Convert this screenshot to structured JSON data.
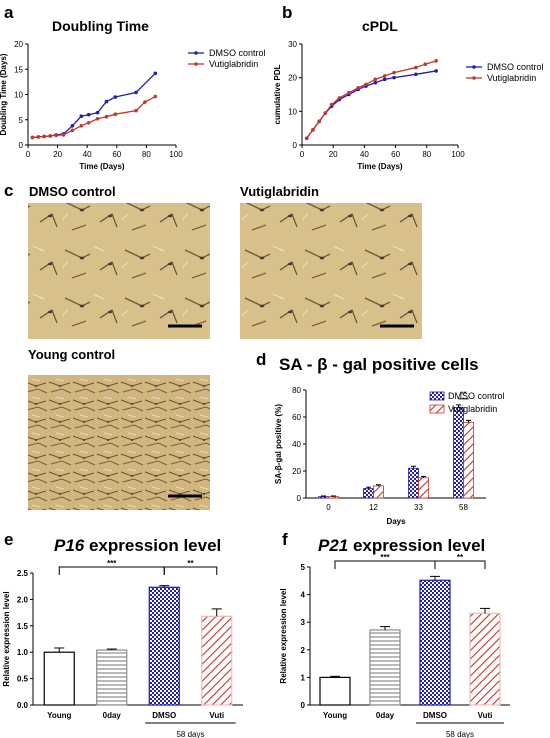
{
  "panels": {
    "a": "a",
    "b": "b",
    "c": "c",
    "d": "d",
    "e": "e",
    "f": "f"
  },
  "photos": {
    "dmso_label": "DMSO control",
    "vuti_label": "Vutiglabridin",
    "young_label": "Young control"
  },
  "e_title": {
    "gene": "P16",
    "rest": " expression level"
  },
  "f_title": {
    "gene": "P21",
    "rest": " expression level"
  },
  "colors": {
    "dmso": "#1f1fb4",
    "vuti": "#c0392b",
    "vuti_light": "#f2b8b8"
  },
  "chart_data": [
    {
      "id": "a",
      "type": "line",
      "title": "Doubling Time",
      "xlabel": "Time (Days)",
      "ylabel": "Doubling Time  (Days)",
      "xlim": [
        0,
        100
      ],
      "ylim": [
        0,
        20
      ],
      "xticks": [
        "0",
        "20",
        "40",
        "60",
        "80",
        "100"
      ],
      "yticks": [
        "0",
        "5",
        "10",
        "15",
        "20"
      ],
      "legend_position": "right",
      "series": [
        {
          "name": "DMSO control",
          "x": [
            3,
            7,
            11,
            15,
            19,
            24,
            30,
            36,
            41,
            47,
            53,
            59,
            73,
            86
          ],
          "y": [
            1.5,
            1.6,
            1.7,
            1.8,
            2.0,
            2.2,
            3.8,
            5.7,
            6.0,
            6.4,
            8.6,
            9.5,
            10.4,
            14.2
          ]
        },
        {
          "name": "Vutiglabridin",
          "x": [
            3,
            7,
            11,
            15,
            19,
            24,
            30,
            36,
            41,
            47,
            53,
            59,
            73,
            79,
            86
          ],
          "y": [
            1.5,
            1.6,
            1.7,
            1.8,
            1.9,
            2.0,
            2.9,
            3.8,
            4.4,
            5.2,
            5.6,
            6.1,
            6.8,
            8.5,
            9.6
          ]
        }
      ]
    },
    {
      "id": "b",
      "type": "line",
      "title": "cPDL",
      "xlabel": "Time (Days)",
      "ylabel": "cumulative PDL",
      "xlim": [
        0,
        100
      ],
      "ylim": [
        0,
        30
      ],
      "xticks": [
        "0",
        "20",
        "40",
        "60",
        "80",
        "100"
      ],
      "yticks": [
        "0",
        "10",
        "20",
        "30"
      ],
      "legend_position": "right",
      "series": [
        {
          "name": "DMSO control",
          "x": [
            3,
            7,
            11,
            15,
            19,
            24,
            30,
            36,
            41,
            47,
            53,
            59,
            73,
            86
          ],
          "y": [
            2,
            4.5,
            7,
            9.5,
            11.5,
            13.5,
            15,
            16.5,
            17.5,
            18.5,
            19.5,
            20,
            21,
            22
          ]
        },
        {
          "name": "Vutiglabridin",
          "x": [
            3,
            7,
            11,
            15,
            19,
            24,
            30,
            36,
            41,
            47,
            53,
            59,
            73,
            79,
            86
          ],
          "y": [
            2,
            4.5,
            7,
            9.5,
            12,
            14,
            15.5,
            17,
            18,
            19.5,
            20.5,
            21.5,
            23,
            24,
            25
          ]
        }
      ]
    },
    {
      "id": "d",
      "type": "bar",
      "title": "SA - β - gal positive cells",
      "xlabel": "Days",
      "ylabel": "SA-β-gal positive (%)",
      "ylim": [
        0,
        80
      ],
      "yticks": [
        "0",
        "20",
        "40",
        "60",
        "80"
      ],
      "categories": [
        "0",
        "12",
        "33",
        "58"
      ],
      "legend_position": "top-right",
      "annotation": "**",
      "series": [
        {
          "name": "DMSO control",
          "values": [
            1,
            7,
            22,
            67
          ],
          "err": [
            0.5,
            1,
            1.5,
            2
          ]
        },
        {
          "name": "Vutiglabridin",
          "values": [
            1,
            9,
            15,
            56
          ],
          "err": [
            0.5,
            0.8,
            1,
            1.5
          ]
        }
      ]
    },
    {
      "id": "e",
      "type": "bar",
      "title": "P16 expression level",
      "ylabel": "Relative expression level",
      "ylim": [
        0,
        2.5
      ],
      "yticks": [
        "0.0",
        "0.5",
        "1.0",
        "1.5",
        "2.0",
        "2.5"
      ],
      "categories": [
        "Young",
        "0day",
        "DMSO",
        "Vuti"
      ],
      "group_label": "58 days",
      "sig_labels": [
        "***",
        "**"
      ],
      "values": [
        1.0,
        1.04,
        2.23,
        1.68
      ],
      "err": [
        0.08,
        0.02,
        0.03,
        0.14
      ]
    },
    {
      "id": "f",
      "type": "bar",
      "title": "P21 expression level",
      "ylabel": "Relative expression level",
      "ylim": [
        0,
        5
      ],
      "yticks": [
        "0",
        "1",
        "2",
        "3",
        "4",
        "5"
      ],
      "categories": [
        "Young",
        "0day",
        "DMSO",
        "Vuti"
      ],
      "group_label": "58 days",
      "sig_labels": [
        "***",
        "**"
      ],
      "values": [
        1.0,
        2.72,
        4.52,
        3.32
      ],
      "err": [
        0.04,
        0.12,
        0.14,
        0.18
      ]
    }
  ]
}
